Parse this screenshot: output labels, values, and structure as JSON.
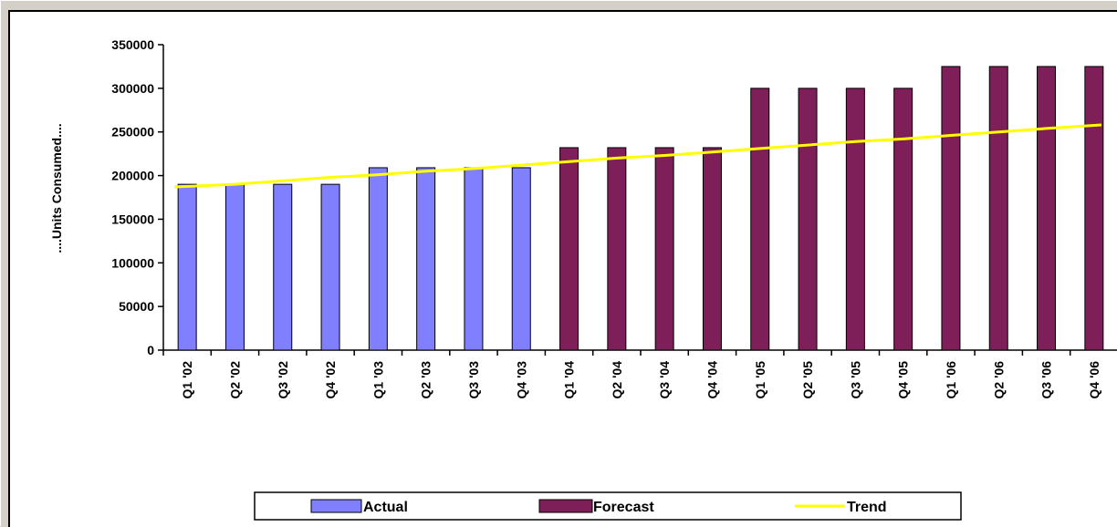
{
  "chart_data": {
    "type": "bar",
    "title": "",
    "xlabel": "",
    "ylabel": "....Units Consumed....",
    "ylim": [
      0,
      350000
    ],
    "yticks": [
      0,
      50000,
      100000,
      150000,
      200000,
      250000,
      300000,
      350000
    ],
    "categories": [
      "Q1 '02",
      "Q2 '02",
      "Q3 '02",
      "Q4 '02",
      "Q1 '03",
      "Q2 '03",
      "Q3 '03",
      "Q4 '03",
      "Q1 '04",
      "Q2 '04",
      "Q3 '04",
      "Q4 '04",
      "Q1 '05",
      "Q2 '05",
      "Q3 '05",
      "Q4 '05",
      "Q1 '06",
      "Q2 '06",
      "Q3 '06",
      "Q4 '06"
    ],
    "series": [
      {
        "name": "Actual",
        "kind": "bar",
        "color": "#8080ff",
        "values": [
          190000,
          190000,
          190000,
          190000,
          209000,
          209000,
          209000,
          209000,
          null,
          null,
          null,
          null,
          null,
          null,
          null,
          null,
          null,
          null,
          null,
          null
        ]
      },
      {
        "name": "Forecast",
        "kind": "bar",
        "color": "#7f1f5a",
        "values": [
          null,
          null,
          null,
          null,
          null,
          null,
          null,
          null,
          232000,
          232000,
          232000,
          232000,
          300000,
          300000,
          300000,
          300000,
          325000,
          325000,
          325000,
          325000
        ]
      },
      {
        "name": "Trend",
        "kind": "line",
        "color": "#ffff00",
        "values": [
          187000,
          190000,
          194000,
          198000,
          201000,
          205000,
          208000,
          212000,
          216000,
          220000,
          223000,
          227000,
          231000,
          235000,
          239000,
          242000,
          246000,
          250000,
          254000,
          258000
        ]
      }
    ],
    "grid": false,
    "legend_position": "bottom"
  }
}
